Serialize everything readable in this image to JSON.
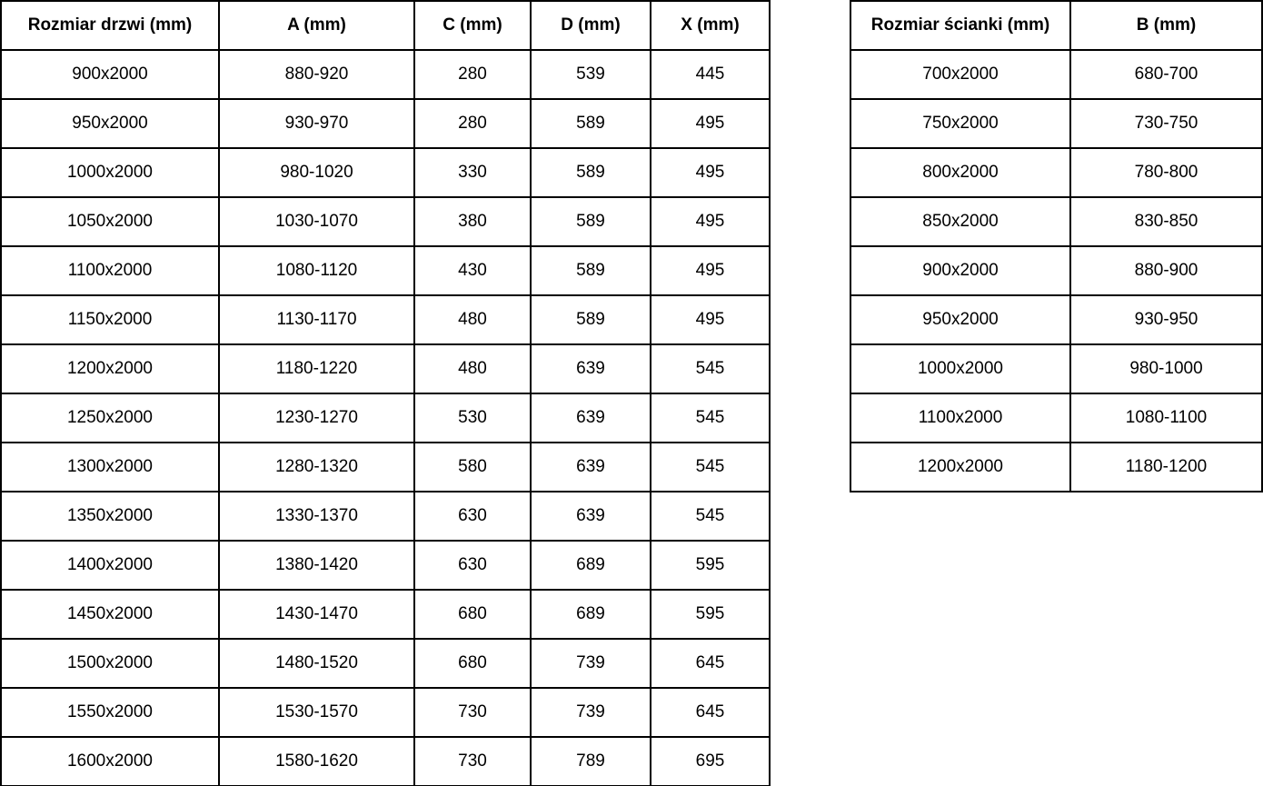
{
  "tables": [
    {
      "id": "doors",
      "headers": [
        "Rozmiar drzwi (mm)",
        "A (mm)",
        "C (mm)",
        "D (mm)",
        "X (mm)"
      ],
      "rows": [
        [
          "900x2000",
          "880-920",
          "280",
          "539",
          "445"
        ],
        [
          "950x2000",
          "930-970",
          "280",
          "589",
          "495"
        ],
        [
          "1000x2000",
          "980-1020",
          "330",
          "589",
          "495"
        ],
        [
          "1050x2000",
          "1030-1070",
          "380",
          "589",
          "495"
        ],
        [
          "1100x2000",
          "1080-1120",
          "430",
          "589",
          "495"
        ],
        [
          "1150x2000",
          "1130-1170",
          "480",
          "589",
          "495"
        ],
        [
          "1200x2000",
          "1180-1220",
          "480",
          "639",
          "545"
        ],
        [
          "1250x2000",
          "1230-1270",
          "530",
          "639",
          "545"
        ],
        [
          "1300x2000",
          "1280-1320",
          "580",
          "639",
          "545"
        ],
        [
          "1350x2000",
          "1330-1370",
          "630",
          "639",
          "545"
        ],
        [
          "1400x2000",
          "1380-1420",
          "630",
          "689",
          "595"
        ],
        [
          "1450x2000",
          "1430-1470",
          "680",
          "689",
          "595"
        ],
        [
          "1500x2000",
          "1480-1520",
          "680",
          "739",
          "645"
        ],
        [
          "1550x2000",
          "1530-1570",
          "730",
          "739",
          "645"
        ],
        [
          "1600x2000",
          "1580-1620",
          "730",
          "789",
          "695"
        ]
      ]
    },
    {
      "id": "panels",
      "headers": [
        "Rozmiar ścianki (mm)",
        "B (mm)"
      ],
      "rows": [
        [
          "700x2000",
          "680-700"
        ],
        [
          "750x2000",
          "730-750"
        ],
        [
          "800x2000",
          "780-800"
        ],
        [
          "850x2000",
          "830-850"
        ],
        [
          "900x2000",
          "880-900"
        ],
        [
          "950x2000",
          "930-950"
        ],
        [
          "1000x2000",
          "980-1000"
        ],
        [
          "1100x2000",
          "1080-1100"
        ],
        [
          "1200x2000",
          "1180-1200"
        ]
      ]
    }
  ],
  "colors": {
    "border": "#000000",
    "text": "#000000",
    "background": "#ffffff"
  }
}
